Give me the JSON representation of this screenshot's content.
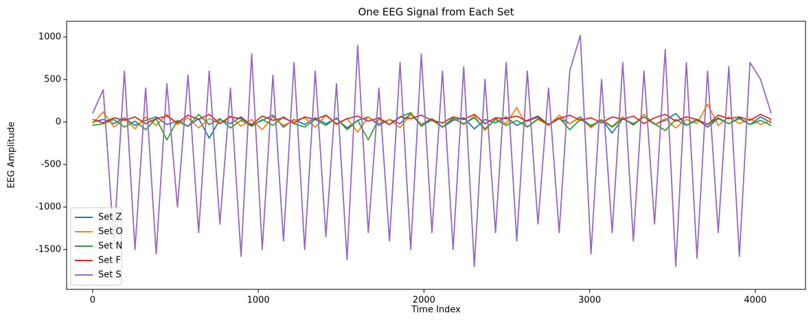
{
  "chart_data": {
    "type": "line",
    "title": "One EEG Signal from Each Set",
    "x_label": "Time Index",
    "y_label": "EEG Amplitude",
    "xlim": [
      -157,
      4303
    ],
    "ylim": [
      -1968,
      1185
    ],
    "xticks": [
      0,
      1000,
      2000,
      3000,
      4000
    ],
    "yticks": [
      -1500,
      -1000,
      -500,
      0,
      500,
      1000
    ],
    "legend": "lower left",
    "x": [
      0,
      64,
      128,
      192,
      256,
      320,
      384,
      448,
      512,
      576,
      640,
      704,
      768,
      832,
      896,
      960,
      1024,
      1088,
      1152,
      1216,
      1280,
      1344,
      1408,
      1472,
      1536,
      1600,
      1664,
      1728,
      1792,
      1856,
      1920,
      1984,
      2048,
      2112,
      2176,
      2240,
      2304,
      2368,
      2432,
      2496,
      2560,
      2624,
      2688,
      2752,
      2816,
      2880,
      2944,
      3008,
      3072,
      3136,
      3200,
      3264,
      3328,
      3392,
      3456,
      3520,
      3584,
      3648,
      3712,
      3776,
      3840,
      3904,
      3968,
      4032,
      4096
    ],
    "series": [
      {
        "name": "Set Z",
        "color": "#1f77b4",
        "values": [
          0,
          30,
          -20,
          50,
          -40,
          20,
          60,
          -30,
          10,
          -50,
          40,
          -190,
          30,
          -20,
          60,
          -40,
          20,
          80,
          -60,
          30,
          -30,
          50,
          -20,
          40,
          -70,
          20,
          60,
          -40,
          30,
          -20,
          100,
          -30,
          40,
          -60,
          20,
          50,
          -80,
          30,
          -10,
          60,
          -40,
          20,
          70,
          -30,
          40,
          -20,
          60,
          -50,
          30,
          -130,
          40,
          -20,
          60,
          -30,
          20,
          100,
          -40,
          30,
          -60,
          40,
          -20,
          50,
          -30,
          60,
          -10
        ]
      },
      {
        "name": "Set O",
        "color": "#ff7f0e",
        "values": [
          -20,
          120,
          -60,
          40,
          -80,
          60,
          -40,
          90,
          -30,
          50,
          -70,
          40,
          -20,
          70,
          -50,
          30,
          -90,
          60,
          -40,
          20,
          50,
          -60,
          80,
          -30,
          40,
          -120,
          60,
          -20,
          30,
          -70,
          90,
          -40,
          20,
          -60,
          50,
          -30,
          70,
          -100,
          40,
          -20,
          170,
          -60,
          30,
          -40,
          80,
          -20,
          50,
          -70,
          30,
          -50,
          60,
          -40,
          90,
          -30,
          40,
          -70,
          30,
          -20,
          210,
          -40,
          60,
          -20,
          40,
          -30,
          20
        ]
      },
      {
        "name": "Set N",
        "color": "#2ca02c",
        "values": [
          -40,
          -20,
          30,
          -60,
          10,
          -90,
          40,
          -210,
          20,
          -50,
          90,
          -30,
          40,
          -70,
          20,
          -50,
          30,
          -40,
          60,
          -20,
          -60,
          30,
          -40,
          50,
          -90,
          20,
          -210,
          40,
          -30,
          60,
          110,
          -50,
          30,
          -60,
          40,
          -20,
          50,
          -80,
          30,
          -40,
          20,
          -60,
          40,
          -30,
          50,
          -90,
          30,
          -40,
          20,
          -60,
          40,
          -30,
          60,
          -20,
          -100,
          30,
          -40,
          20,
          -30,
          50,
          -20,
          40,
          -30,
          20,
          -40
        ]
      },
      {
        "name": "Set F",
        "color": "#d62728",
        "values": [
          30,
          -10,
          50,
          20,
          60,
          -20,
          40,
          70,
          -10,
          80,
          30,
          90,
          -20,
          60,
          40,
          -30,
          70,
          20,
          50,
          -10,
          60,
          30,
          80,
          -20,
          40,
          70,
          10,
          50,
          -30,
          60,
          40,
          80,
          20,
          -10,
          60,
          30,
          90,
          -20,
          50,
          40,
          70,
          10,
          60,
          -30,
          40,
          80,
          20,
          50,
          -10,
          60,
          30,
          70,
          -20,
          50,
          90,
          10,
          60,
          30,
          -30,
          80,
          40,
          60,
          20,
          90,
          30
        ]
      },
      {
        "name": "Set S",
        "color": "#9467bd",
        "values": [
          100,
          380,
          -1400,
          600,
          -1500,
          400,
          -1550,
          450,
          -1000,
          550,
          -1300,
          600,
          -1200,
          400,
          -1580,
          800,
          -1500,
          550,
          -1400,
          700,
          -1500,
          600,
          -1350,
          450,
          -1620,
          900,
          -1300,
          400,
          -1400,
          700,
          -1500,
          800,
          -1300,
          600,
          -1500,
          650,
          -1700,
          500,
          -1300,
          700,
          -1400,
          600,
          -1200,
          400,
          -1300,
          600,
          1020,
          -1550,
          500,
          -1300,
          700,
          -1400,
          600,
          -1200,
          850,
          -1700,
          700,
          -1600,
          600,
          -1300,
          650,
          -1580,
          700,
          500,
          100
        ]
      }
    ]
  }
}
